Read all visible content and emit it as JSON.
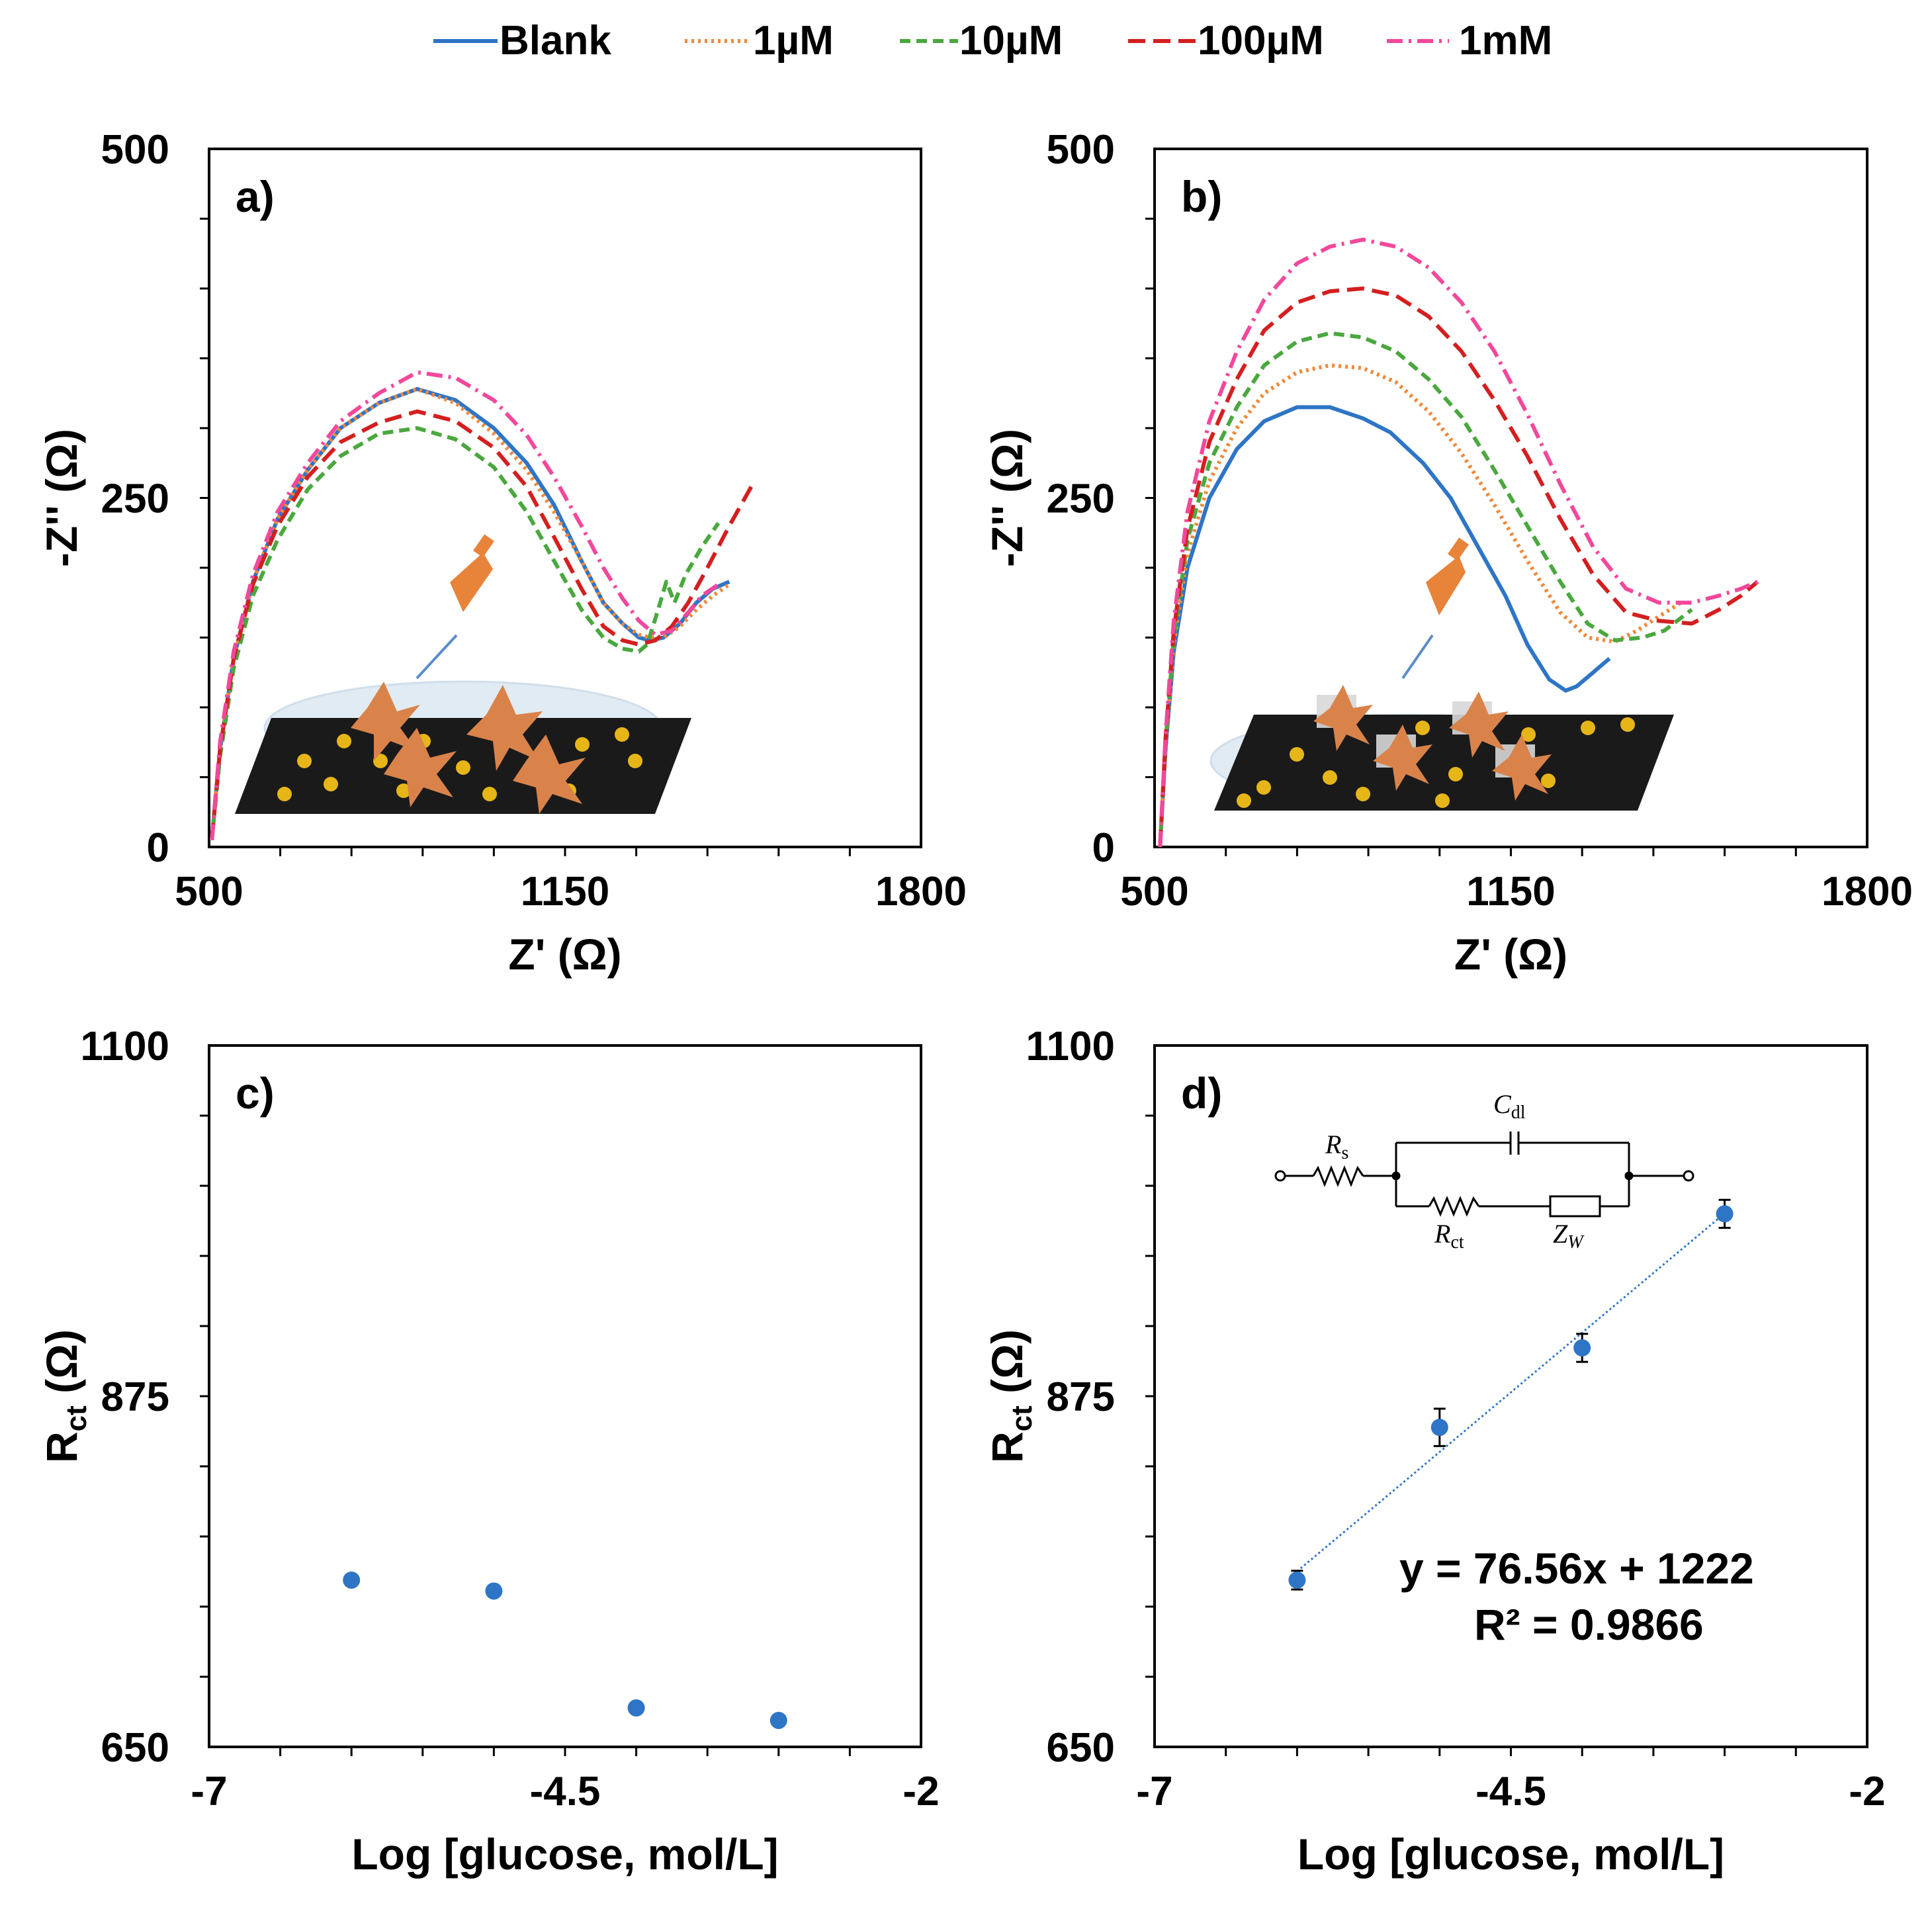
{
  "legend": [
    {
      "name": "Blank",
      "color": "#2e75c6",
      "dash": "solid"
    },
    {
      "name": "1µM",
      "color": "#f08a3c",
      "dash": "dotted"
    },
    {
      "name": "10µM",
      "color": "#4aa83e",
      "dash": "dashed"
    },
    {
      "name": "100µM",
      "color": "#d41f1f",
      "dash": "longdash"
    },
    {
      "name": "1mM",
      "color": "#f2489b",
      "dash": "dashdot"
    }
  ],
  "chart_data": [
    {
      "id": "a",
      "panel_label": "a)",
      "type": "line",
      "xlabel": "Z' (Ω)",
      "ylabel": "-Z'' (Ω)",
      "xlim": [
        500,
        1800
      ],
      "ylim": [
        0,
        500
      ],
      "xticks": [
        500,
        1150,
        1800
      ],
      "yticks": [
        0,
        250,
        500
      ],
      "series": [
        {
          "name": "Blank",
          "x": [
            505,
            520,
            545,
            580,
            625,
            680,
            740,
            810,
            880,
            950,
            1020,
            1080,
            1130,
            1180,
            1220,
            1255,
            1285,
            1305,
            1330,
            1360,
            1390,
            1420,
            1450
          ],
          "y": [
            5,
            70,
            135,
            190,
            235,
            270,
            300,
            318,
            328,
            320,
            300,
            275,
            245,
            205,
            175,
            160,
            150,
            148,
            150,
            160,
            175,
            185,
            190
          ]
        },
        {
          "name": "1µM",
          "x": [
            505,
            520,
            545,
            580,
            625,
            680,
            740,
            810,
            880,
            950,
            1020,
            1080,
            1130,
            1180,
            1220,
            1255,
            1285,
            1305,
            1330,
            1360,
            1390,
            1420,
            1450
          ],
          "y": [
            5,
            70,
            135,
            190,
            235,
            270,
            300,
            318,
            328,
            318,
            296,
            270,
            240,
            205,
            175,
            160,
            152,
            150,
            150,
            158,
            170,
            180,
            188
          ]
        },
        {
          "name": "10µM",
          "x": [
            505,
            520,
            545,
            580,
            625,
            680,
            740,
            810,
            880,
            950,
            1020,
            1080,
            1130,
            1180,
            1220,
            1255,
            1285,
            1300,
            1320,
            1335,
            1350,
            1370,
            1400,
            1430
          ],
          "y": [
            5,
            65,
            128,
            180,
            220,
            256,
            280,
            296,
            300,
            292,
            272,
            240,
            205,
            170,
            150,
            142,
            140,
            145,
            170,
            190,
            175,
            195,
            215,
            232
          ]
        },
        {
          "name": "100µM",
          "x": [
            505,
            520,
            545,
            580,
            625,
            680,
            740,
            810,
            880,
            950,
            1020,
            1080,
            1130,
            1180,
            1220,
            1255,
            1285,
            1315,
            1345,
            1375,
            1410,
            1450,
            1490
          ],
          "y": [
            5,
            70,
            135,
            188,
            230,
            265,
            290,
            304,
            312,
            305,
            286,
            258,
            222,
            185,
            158,
            148,
            145,
            148,
            158,
            175,
            200,
            230,
            258
          ]
        },
        {
          "name": "1mM",
          "x": [
            505,
            520,
            545,
            580,
            625,
            680,
            740,
            810,
            880,
            950,
            1020,
            1080,
            1130,
            1180,
            1220,
            1255,
            1285,
            1315,
            1345,
            1375,
            1400,
            1430
          ],
          "y": [
            5,
            75,
            140,
            195,
            240,
            275,
            305,
            325,
            340,
            336,
            320,
            295,
            265,
            230,
            200,
            178,
            162,
            152,
            155,
            168,
            180,
            188
          ]
        }
      ]
    },
    {
      "id": "b",
      "panel_label": "b)",
      "type": "line",
      "xlabel": "Z' (Ω)",
      "ylabel": "-Z'' (Ω)",
      "xlim": [
        500,
        1800
      ],
      "ylim": [
        0,
        500
      ],
      "xticks": [
        500,
        1150,
        1800
      ],
      "yticks": [
        0,
        250,
        500
      ],
      "series": [
        {
          "name": "Blank",
          "x": [
            510,
            520,
            535,
            560,
            600,
            650,
            700,
            760,
            820,
            880,
            930,
            990,
            1040,
            1090,
            1140,
            1180,
            1220,
            1250,
            1270,
            1300,
            1330
          ],
          "y": [
            0,
            70,
            140,
            200,
            250,
            285,
            305,
            315,
            315,
            307,
            297,
            275,
            250,
            215,
            180,
            145,
            120,
            112,
            115,
            125,
            135
          ]
        },
        {
          "name": "1µM",
          "x": [
            510,
            520,
            535,
            560,
            600,
            650,
            700,
            760,
            820,
            880,
            940,
            1000,
            1060,
            1120,
            1180,
            1240,
            1290,
            1340,
            1380,
            1420,
            1460
          ],
          "y": [
            0,
            72,
            145,
            210,
            262,
            300,
            325,
            340,
            345,
            343,
            333,
            312,
            282,
            245,
            205,
            168,
            150,
            147,
            155,
            165,
            175
          ]
        },
        {
          "name": "10µM",
          "x": [
            510,
            520,
            535,
            560,
            600,
            650,
            700,
            760,
            820,
            880,
            940,
            1000,
            1060,
            1120,
            1180,
            1240,
            1290,
            1340,
            1390,
            1430,
            1480
          ],
          "y": [
            0,
            75,
            150,
            220,
            275,
            315,
            345,
            362,
            368,
            365,
            355,
            335,
            308,
            270,
            230,
            190,
            160,
            148,
            150,
            155,
            170
          ]
        },
        {
          "name": "100µM",
          "x": [
            510,
            520,
            535,
            560,
            600,
            650,
            700,
            760,
            820,
            880,
            940,
            1000,
            1060,
            1120,
            1180,
            1240,
            1300,
            1360,
            1420,
            1480,
            1530,
            1570,
            1600
          ],
          "y": [
            0,
            78,
            155,
            228,
            290,
            335,
            370,
            390,
            398,
            400,
            395,
            380,
            355,
            320,
            280,
            235,
            195,
            168,
            162,
            160,
            170,
            180,
            190
          ]
        },
        {
          "name": "1mM",
          "x": [
            510,
            520,
            535,
            560,
            600,
            650,
            700,
            760,
            820,
            880,
            940,
            1000,
            1060,
            1120,
            1180,
            1240,
            1300,
            1360,
            1420,
            1480,
            1530,
            1570,
            1600
          ],
          "y": [
            0,
            80,
            162,
            240,
            305,
            355,
            392,
            418,
            430,
            435,
            430,
            415,
            390,
            355,
            310,
            260,
            215,
            185,
            175,
            175,
            180,
            185,
            190
          ]
        }
      ]
    },
    {
      "id": "c",
      "panel_label": "c)",
      "type": "scatter",
      "xlabel": "Log [glucose, mol/L]",
      "ylabel_main": "R",
      "ylabel_sub": "ct",
      "ylabel_unit": " (Ω)",
      "xlim": [
        -7,
        -2
      ],
      "ylim": [
        650,
        1100
      ],
      "xticks": [
        -7,
        -4.5,
        -2
      ],
      "yticks": [
        650,
        875,
        1100
      ],
      "points": [
        {
          "x": -6,
          "y": 757
        },
        {
          "x": -5,
          "y": 750
        },
        {
          "x": -4,
          "y": 675
        },
        {
          "x": -3,
          "y": 667
        }
      ]
    },
    {
      "id": "d",
      "panel_label": "d)",
      "type": "scatter",
      "xlabel": "Log [glucose, mol/L]",
      "ylabel_main": "R",
      "ylabel_sub": "ct",
      "ylabel_unit": " (Ω)",
      "xlim": [
        -7,
        -2
      ],
      "ylim": [
        650,
        1100
      ],
      "xticks": [
        -7,
        -4.5,
        -2
      ],
      "yticks": [
        650,
        875,
        1100
      ],
      "points": [
        {
          "x": -6,
          "y": 757,
          "err": 6
        },
        {
          "x": -5,
          "y": 855,
          "err": 12
        },
        {
          "x": -4,
          "y": 906,
          "err": 9
        },
        {
          "x": -3,
          "y": 992,
          "err": 9
        }
      ],
      "trendline": {
        "slope": 76.56,
        "intercept": 1222,
        "x_range": [
          -6,
          -3
        ]
      },
      "equation": "y = 76.56x + 1222",
      "r_squared": "R² = 0.9866",
      "circuit": {
        "rs": "R",
        "rs_sub": "s",
        "cdl": "C",
        "cdl_sub": "dl",
        "rct": "R",
        "rct_sub": "ct",
        "zw": "Z",
        "zw_sub": "W"
      }
    }
  ]
}
